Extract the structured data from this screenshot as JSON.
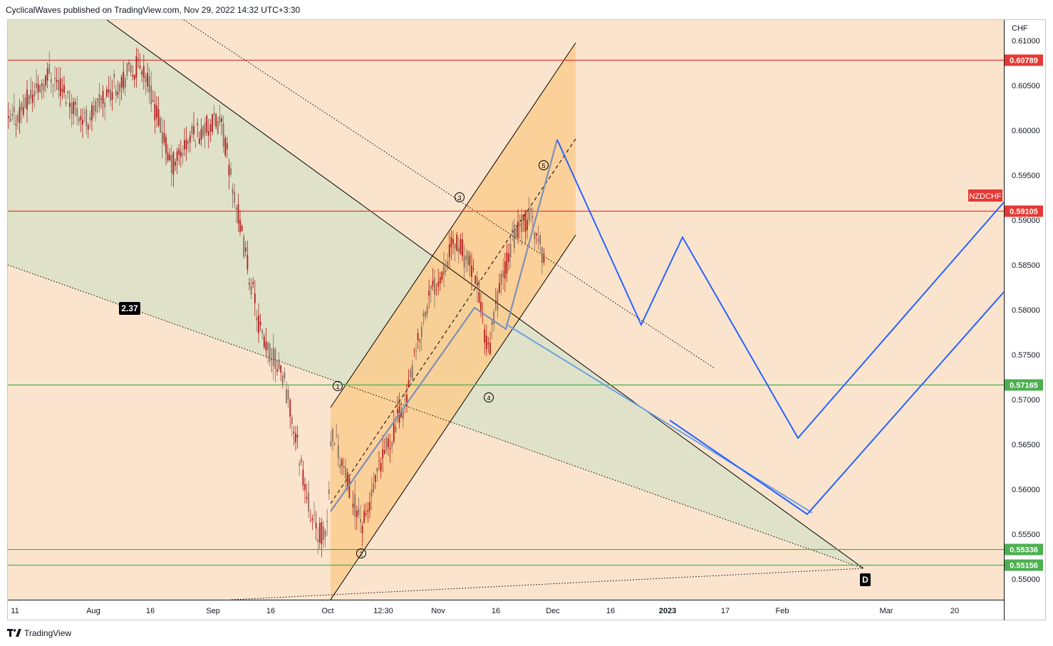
{
  "header": {
    "text": "CyclicalWaves published on TradingView.com, Nov 29, 2022 14:32 UTC+3:30"
  },
  "footer": {
    "brand": "TradingView",
    "logo_icon": "tradingview-logo-icon"
  },
  "colors": {
    "background": "#fbe4cd",
    "green_zone": "#dfe2c9",
    "channel_fill": "#fbcd8f",
    "resistance": "#e53935",
    "support": "#4caf50",
    "projection": "#2962ff",
    "wave_path": "#7e8fb8",
    "candle": "#b71c1c",
    "badge_dark": "#000000"
  },
  "chart_data": {
    "type": "candlestick",
    "symbol": "NZDCHF",
    "currency": "CHF",
    "ylim": [
      0.5477,
      0.6123
    ],
    "x_ticks": [
      "11",
      "Aug",
      "16",
      "Sep",
      "16",
      "Oct",
      "12:30",
      "Nov",
      "16",
      "Dec",
      "16",
      "2023",
      "17",
      "Feb",
      "Mar",
      "20"
    ],
    "x_tick_bold": [
      "2023"
    ],
    "y_ticks": [
      "0.61000",
      "0.60500",
      "0.60000",
      "0.59500",
      "0.59000",
      "0.58500",
      "0.58000",
      "0.57500",
      "0.57000",
      "0.56500",
      "0.56000",
      "0.55500",
      "0.55000"
    ],
    "levels": [
      {
        "value": 0.60789,
        "label": "0.60789",
        "kind": "resistance"
      },
      {
        "value": 0.59105,
        "label": "0.59105",
        "kind": "resistance"
      },
      {
        "value": 0.57165,
        "label": "0.57165",
        "kind": "support"
      },
      {
        "value": 0.55336,
        "label": "0.55336",
        "kind": "support"
      },
      {
        "value": 0.55156,
        "label": "0.55156",
        "kind": "support"
      }
    ],
    "symbol_tag": "NZDCHF",
    "annotations": {
      "ratio_badge": "2.37",
      "pattern_point": "D",
      "wave_labels": [
        "1",
        "2",
        "3",
        "4",
        "5"
      ]
    }
  }
}
